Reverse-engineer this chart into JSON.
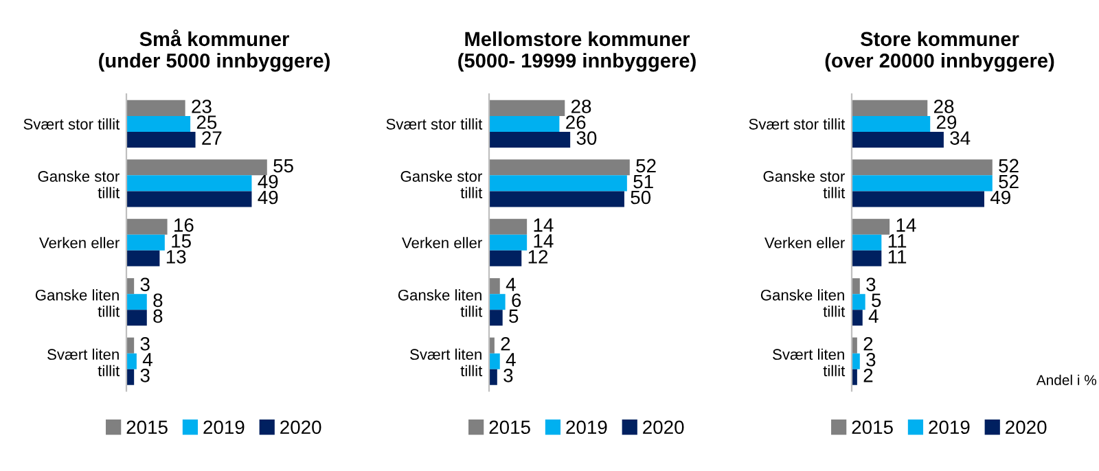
{
  "chart_data": [
    {
      "type": "bar",
      "orientation": "horizontal",
      "title": "Små kommuner\n(under 5000 innbyggere)",
      "categories": [
        "Svært stor tillit",
        "Ganske stor\ntillit",
        "Verken eller",
        "Ganske liten\ntillit",
        "Svært liten\ntillit"
      ],
      "series": [
        {
          "name": "2015",
          "color": "#808080",
          "values": [
            23,
            55,
            16,
            3,
            3
          ]
        },
        {
          "name": "2019",
          "color": "#00b0f0",
          "values": [
            25,
            49,
            15,
            8,
            4
          ]
        },
        {
          "name": "2020",
          "color": "#002060",
          "values": [
            27,
            49,
            13,
            8,
            3
          ]
        }
      ],
      "data_labels": true,
      "legend": "bottom",
      "grid": false
    },
    {
      "type": "bar",
      "orientation": "horizontal",
      "title": "Mellomstore kommuner\n(5000- 19999 innbyggere)",
      "categories": [
        "Svært stor tillit",
        "Ganske stor\ntillit",
        "Verken eller",
        "Ganske liten\ntillit",
        "Svært liten\ntillit"
      ],
      "series": [
        {
          "name": "2015",
          "color": "#808080",
          "values": [
            28,
            52,
            14,
            4,
            2
          ]
        },
        {
          "name": "2019",
          "color": "#00b0f0",
          "values": [
            26,
            51,
            14,
            6,
            4
          ]
        },
        {
          "name": "2020",
          "color": "#002060",
          "values": [
            30,
            50,
            12,
            5,
            3
          ]
        }
      ],
      "data_labels": true,
      "legend": "bottom",
      "grid": false
    },
    {
      "type": "bar",
      "orientation": "horizontal",
      "title": "Store kommuner\n(over 20000 innbyggere)",
      "categories": [
        "Svært stor tillit",
        "Ganske stor\ntillit",
        "Verken eller",
        "Ganske liten\ntillit",
        "Svært liten\ntillit"
      ],
      "series": [
        {
          "name": "2015",
          "color": "#808080",
          "values": [
            28,
            52,
            14,
            3,
            2
          ]
        },
        {
          "name": "2019",
          "color": "#00b0f0",
          "values": [
            29,
            52,
            11,
            5,
            3
          ]
        },
        {
          "name": "2020",
          "color": "#002060",
          "values": [
            34,
            49,
            11,
            4,
            2
          ]
        }
      ],
      "data_labels": true,
      "legend": "bottom",
      "grid": false,
      "annotations": [
        "Andel i %"
      ]
    }
  ]
}
